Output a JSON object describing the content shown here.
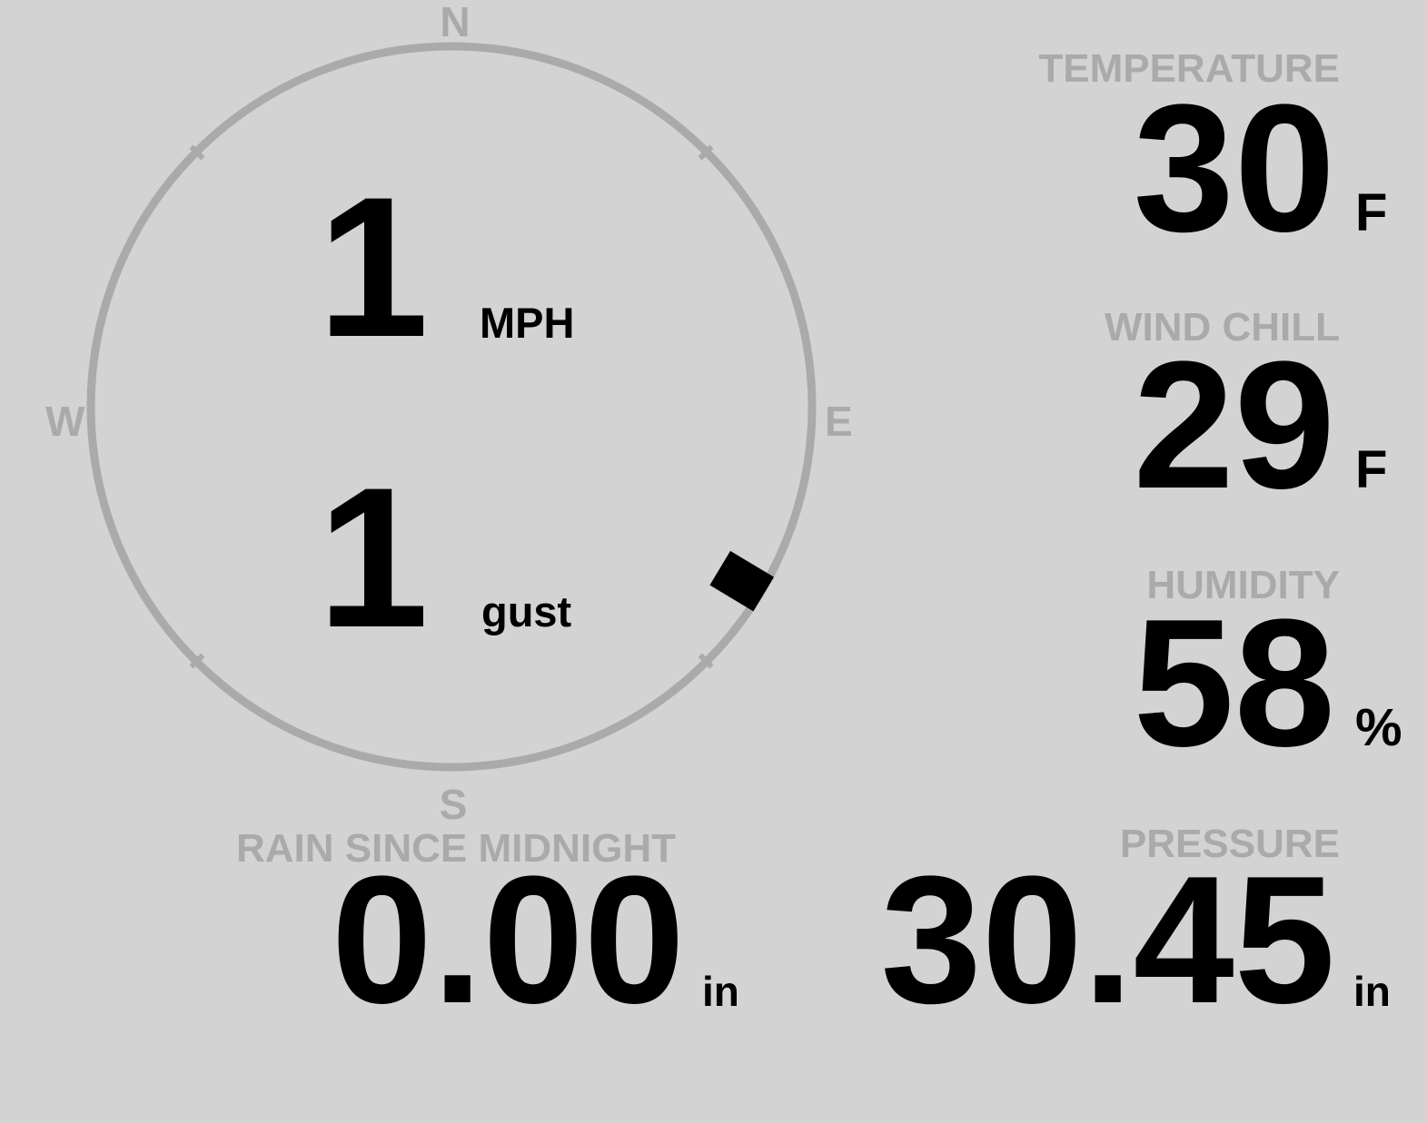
{
  "compass": {
    "north": "N",
    "east": "E",
    "south": "S",
    "west": "W",
    "wind_direction_deg": 121,
    "ring_color": "#aaaaaa",
    "indicator_color": "#000000"
  },
  "wind": {
    "speed": "1",
    "speed_unit": "MPH",
    "gust": "1",
    "gust_unit": "gust"
  },
  "temperature": {
    "label": "TEMPERATURE",
    "value": "30",
    "unit": "F"
  },
  "wind_chill": {
    "label": "WIND CHILL",
    "value": "29",
    "unit": "F"
  },
  "humidity": {
    "label": "HUMIDITY",
    "value": "58",
    "unit": "%"
  },
  "rain": {
    "label": "RAIN SINCE MIDNIGHT",
    "value": "0.00",
    "unit": "in"
  },
  "pressure": {
    "label": "PRESSURE",
    "value": "30.45",
    "unit": "in"
  },
  "colors": {
    "background": "#d3d3d3",
    "label": "#aaaaaa",
    "value": "#000000"
  }
}
